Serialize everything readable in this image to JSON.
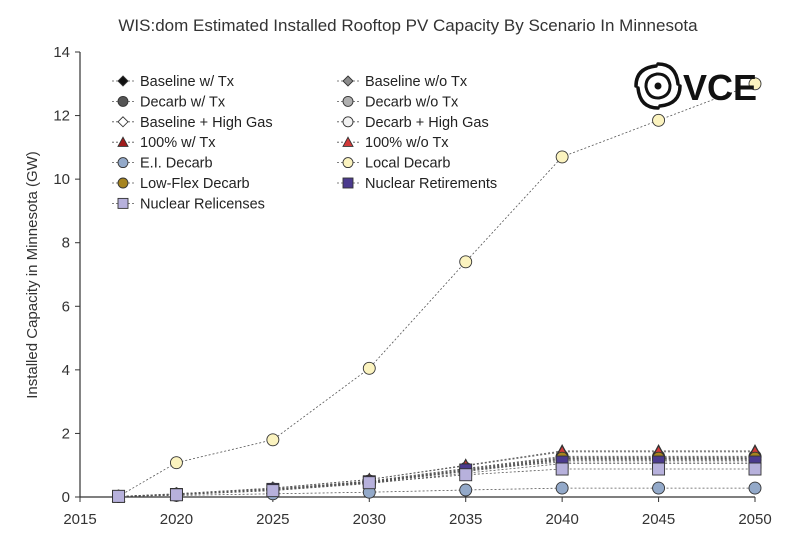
{
  "chart_data": {
    "type": "line",
    "title": "WIS:dom Estimated Installed Rooftop PV Capacity By Scenario In Minnesota",
    "xlabel": "",
    "ylabel": "Installed Capacity in Minnesota (GW)",
    "xlim": [
      2015,
      2050
    ],
    "ylim": [
      0,
      14
    ],
    "xticks": [
      2015,
      2020,
      2025,
      2030,
      2035,
      2040,
      2045,
      2050
    ],
    "yticks": [
      0,
      2,
      4,
      6,
      8,
      10,
      12,
      14
    ],
    "grid": false,
    "legend_position": "top-left",
    "logo_text": "VCE",
    "x": [
      2017,
      2020,
      2025,
      2030,
      2035,
      2040,
      2045,
      2050
    ],
    "series": [
      {
        "name": "Baseline w/ Tx",
        "marker": "diamond",
        "color": "#111111",
        "values": [
          0.02,
          0.08,
          0.22,
          0.45,
          0.8,
          1.15,
          1.15,
          1.15
        ]
      },
      {
        "name": "Baseline w/o Tx",
        "marker": "diamond",
        "color": "#8c8c8c",
        "values": [
          0.02,
          0.08,
          0.22,
          0.45,
          0.82,
          1.18,
          1.18,
          1.18
        ]
      },
      {
        "name": "Decarb w/ Tx",
        "marker": "circle",
        "color": "#555555",
        "values": [
          0.02,
          0.09,
          0.25,
          0.5,
          0.88,
          1.25,
          1.25,
          1.25
        ]
      },
      {
        "name": "Decarb w/o Tx",
        "marker": "circle",
        "color": "#b0b0b0",
        "values": [
          0.02,
          0.09,
          0.25,
          0.5,
          0.9,
          1.28,
          1.28,
          1.28
        ]
      },
      {
        "name": "Baseline + High Gas",
        "marker": "diamond",
        "color": "#ffffff",
        "values": [
          0.02,
          0.08,
          0.2,
          0.42,
          0.75,
          1.05,
          1.05,
          1.05
        ]
      },
      {
        "name": "Decarb + High Gas",
        "marker": "circle",
        "color": "#f2f2f2",
        "values": [
          0.02,
          0.08,
          0.23,
          0.46,
          0.84,
          1.2,
          1.2,
          1.2
        ]
      },
      {
        "name": "100% w/ Tx",
        "marker": "triangle",
        "color": "#a01c1c",
        "values": [
          0.02,
          0.1,
          0.28,
          0.55,
          1.0,
          1.45,
          1.45,
          1.45
        ]
      },
      {
        "name": "100% w/o Tx",
        "marker": "triangle",
        "color": "#d23a3a",
        "values": [
          0.02,
          0.1,
          0.28,
          0.55,
          0.98,
          1.42,
          1.42,
          1.42
        ]
      },
      {
        "name": "E.I. Decarb",
        "marker": "circle",
        "color": "#93a9c9",
        "values": [
          0.02,
          0.05,
          0.1,
          0.15,
          0.22,
          0.28,
          0.28,
          0.28
        ]
      },
      {
        "name": "Local Decarb",
        "marker": "circle",
        "color": "#fbf3bf",
        "values": [
          0.02,
          1.08,
          1.8,
          4.05,
          7.4,
          10.7,
          11.85,
          13.0
        ]
      },
      {
        "name": "Low-Flex Decarb",
        "marker": "circle",
        "color": "#a6841f",
        "values": [
          0.02,
          0.09,
          0.25,
          0.48,
          0.86,
          1.22,
          1.22,
          1.22
        ]
      },
      {
        "name": "Nuclear Retirements",
        "marker": "square",
        "color": "#4b3a8e",
        "values": [
          0.02,
          0.08,
          0.24,
          0.48,
          0.85,
          1.1,
          1.1,
          1.1
        ]
      },
      {
        "name": "Nuclear Relicenses",
        "marker": "square",
        "color": "#b7b1dc",
        "values": [
          0.02,
          0.07,
          0.2,
          0.45,
          0.7,
          0.88,
          0.88,
          0.88
        ]
      }
    ]
  }
}
